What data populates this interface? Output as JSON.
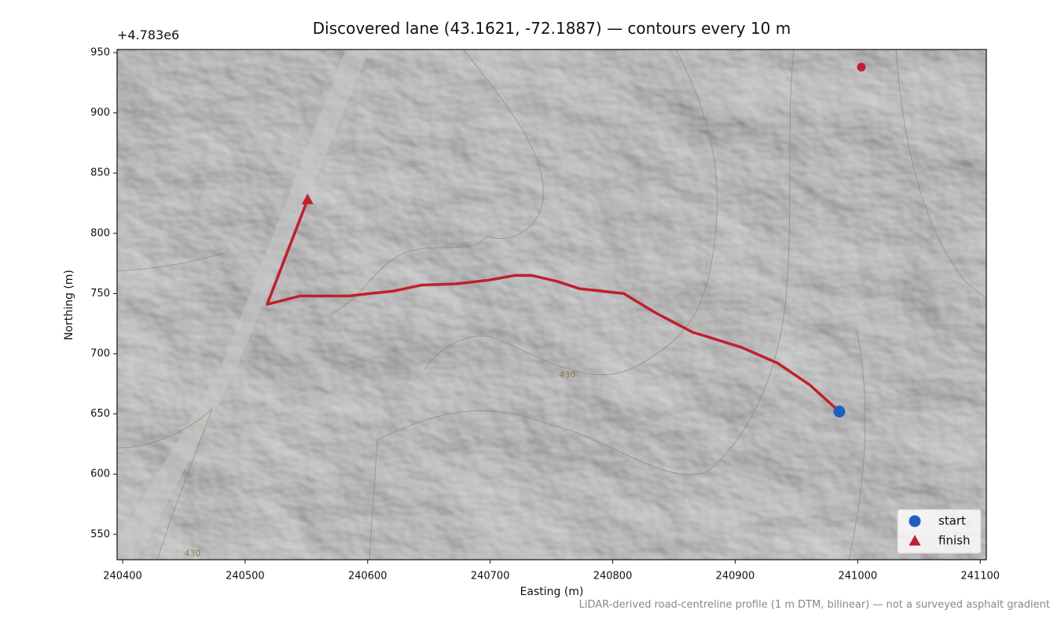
{
  "chart_data": {
    "type": "line",
    "title": "Discovered lane (43.1621, -72.1887) — contours every 10 m",
    "x_label": "Easting (m)",
    "y_label": "Northing (m)",
    "y_offset_label": "+4.783e6",
    "footnote": "LiDAR-derived road-centreline profile (1 m DTM, bilinear) — not a surveyed asphalt gradient",
    "xlim": [
      240395.5,
      241105
    ],
    "ylim": [
      529,
      952.6
    ],
    "xticks": [
      240400,
      240500,
      240600,
      240700,
      240800,
      240900,
      241000,
      241100
    ],
    "yticks": [
      550,
      600,
      650,
      700,
      750,
      800,
      850,
      900,
      950
    ],
    "grid": false,
    "route": {
      "color": "#c0202e",
      "x": [
        240985,
        240961,
        240935,
        240906,
        240865,
        240835,
        240809,
        240773,
        240755,
        240734,
        240720,
        240698,
        240672,
        240644,
        240621,
        240602,
        240585,
        240545,
        240518,
        240551
      ],
      "y": [
        652,
        674,
        692,
        705,
        718,
        734,
        750,
        754,
        760,
        765,
        765,
        761,
        758,
        757,
        752,
        750,
        748,
        748,
        741,
        828
      ]
    },
    "points": [
      {
        "name": "start",
        "color": "#1f5fbf",
        "marker": "circle",
        "x": 240985,
        "y": 652
      },
      {
        "name": "finish",
        "color": "#c0202e",
        "marker": "triangle",
        "x": 240551,
        "y": 828
      }
    ],
    "extra_points": [
      {
        "color": "#c0202e",
        "marker": "circle",
        "x": 241003,
        "y": 938
      }
    ],
    "annotations": [
      {
        "text": "430",
        "x": 240763,
        "y": 682
      },
      {
        "text": "430",
        "x": 240457,
        "y": 534
      }
    ],
    "legend": "lower right"
  }
}
